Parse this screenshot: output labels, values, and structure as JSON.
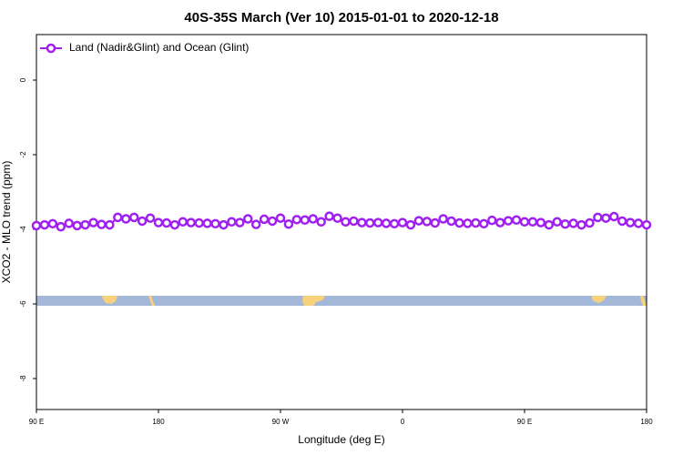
{
  "chart_data": {
    "type": "line",
    "title": "40S-35S March (Ver 10)   2015-01-01 to 2020-12-18",
    "x_label": "Longitude (deg E)",
    "y_label": "XCO2 - MLO trend (ppm)",
    "x": [
      90,
      96,
      102,
      108,
      114,
      120,
      126,
      132,
      138,
      144,
      150,
      156,
      162,
      168,
      174,
      180,
      186,
      192,
      198,
      204,
      210,
      216,
      222,
      228,
      234,
      240,
      246,
      252,
      258,
      264,
      270,
      276,
      282,
      288,
      294,
      300,
      306,
      312,
      318,
      324,
      330,
      336,
      342,
      348,
      354,
      360,
      366,
      372,
      378,
      384,
      390,
      396,
      402,
      408,
      414,
      420,
      426,
      432,
      438,
      444,
      450,
      456,
      462,
      468,
      474,
      480,
      486,
      492,
      498,
      504,
      510,
      516,
      522,
      528,
      534,
      540
    ],
    "series": [
      {
        "name": "Land (Nadir&Glint) and Ocean (Glint)",
        "color": "#a020f0",
        "values": [
          -3.9,
          -3.88,
          -3.85,
          -3.93,
          -3.84,
          -3.9,
          -3.88,
          -3.82,
          -3.87,
          -3.88,
          -3.68,
          -3.72,
          -3.68,
          -3.78,
          -3.7,
          -3.82,
          -3.83,
          -3.88,
          -3.8,
          -3.82,
          -3.83,
          -3.84,
          -3.85,
          -3.88,
          -3.8,
          -3.82,
          -3.72,
          -3.87,
          -3.73,
          -3.78,
          -3.7,
          -3.86,
          -3.74,
          -3.75,
          -3.72,
          -3.8,
          -3.65,
          -3.7,
          -3.8,
          -3.78,
          -3.82,
          -3.83,
          -3.82,
          -3.84,
          -3.85,
          -3.82,
          -3.88,
          -3.77,
          -3.79,
          -3.83,
          -3.72,
          -3.78,
          -3.83,
          -3.84,
          -3.83,
          -3.85,
          -3.76,
          -3.82,
          -3.77,
          -3.75,
          -3.8,
          -3.8,
          -3.82,
          -3.88,
          -3.8,
          -3.86,
          -3.84,
          -3.88,
          -3.83,
          -3.68,
          -3.7,
          -3.66,
          -3.78,
          -3.82,
          -3.84,
          -3.88
        ]
      }
    ],
    "xlim": [
      90,
      540
    ],
    "xticks": [
      {
        "value": 90,
        "label": "90 E"
      },
      180,
      {
        "value": 270,
        "label": "90 W"
      },
      {
        "value": 360,
        "label": "0"
      },
      {
        "value": 450,
        "label": "90 E"
      },
      {
        "value": 540,
        "label": "180"
      }
    ],
    "ylim": [
      -8.83,
      1.22
    ],
    "yticks": [
      0,
      -2,
      -4,
      -6,
      -8
    ],
    "legend": "top-left"
  }
}
